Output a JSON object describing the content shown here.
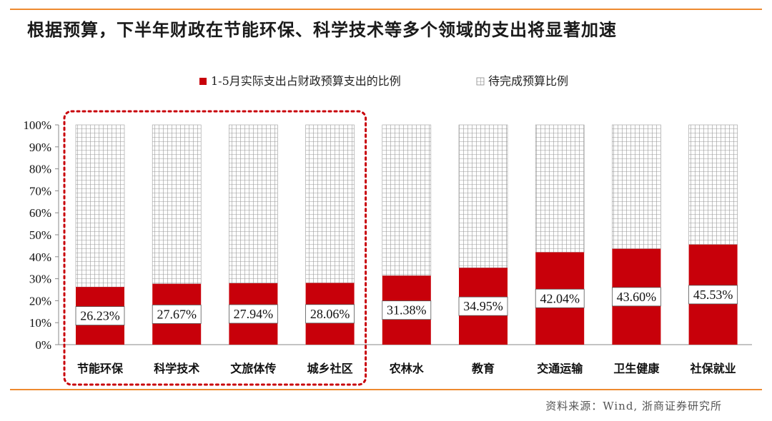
{
  "title": "根据预算，下半年财政在节能环保、科学技术等多个领域的支出将显著加速",
  "source": "资料来源：Wind, 浙商证券研究所",
  "colors": {
    "accent_rule": "#ee8a2f",
    "actual": "#c8000a",
    "remaining": "#ffffff",
    "highlight_box": "#c8000a"
  },
  "chart_data": {
    "type": "bar",
    "stacked": true,
    "title": "",
    "xlabel": "",
    "ylabel": "",
    "ylim": [
      0,
      100
    ],
    "yticks": [
      "0%",
      "10%",
      "20%",
      "30%",
      "40%",
      "50%",
      "60%",
      "70%",
      "80%",
      "90%",
      "100%"
    ],
    "categories": [
      "节能环保",
      "科学技术",
      "文旅体传",
      "城乡社区",
      "农林水",
      "教育",
      "交通运输",
      "卫生健康",
      "社保就业"
    ],
    "series": [
      {
        "name": "1-5月实际支出占财政预算支出的比例",
        "values": [
          26.23,
          27.67,
          27.94,
          28.06,
          31.38,
          34.95,
          42.04,
          43.6,
          45.53
        ]
      },
      {
        "name": "待完成预算比例",
        "values": [
          73.77,
          72.33,
          72.06,
          71.94,
          68.62,
          65.05,
          57.96,
          56.4,
          54.47
        ]
      }
    ],
    "data_labels": [
      "26.23%",
      "27.67%",
      "27.94%",
      "28.06%",
      "31.38%",
      "34.95%",
      "42.04%",
      "43.60%",
      "45.53%"
    ],
    "legend_position": "top-center",
    "highlighted_categories": [
      "节能环保",
      "科学技术",
      "文旅体传",
      "城乡社区"
    ]
  }
}
